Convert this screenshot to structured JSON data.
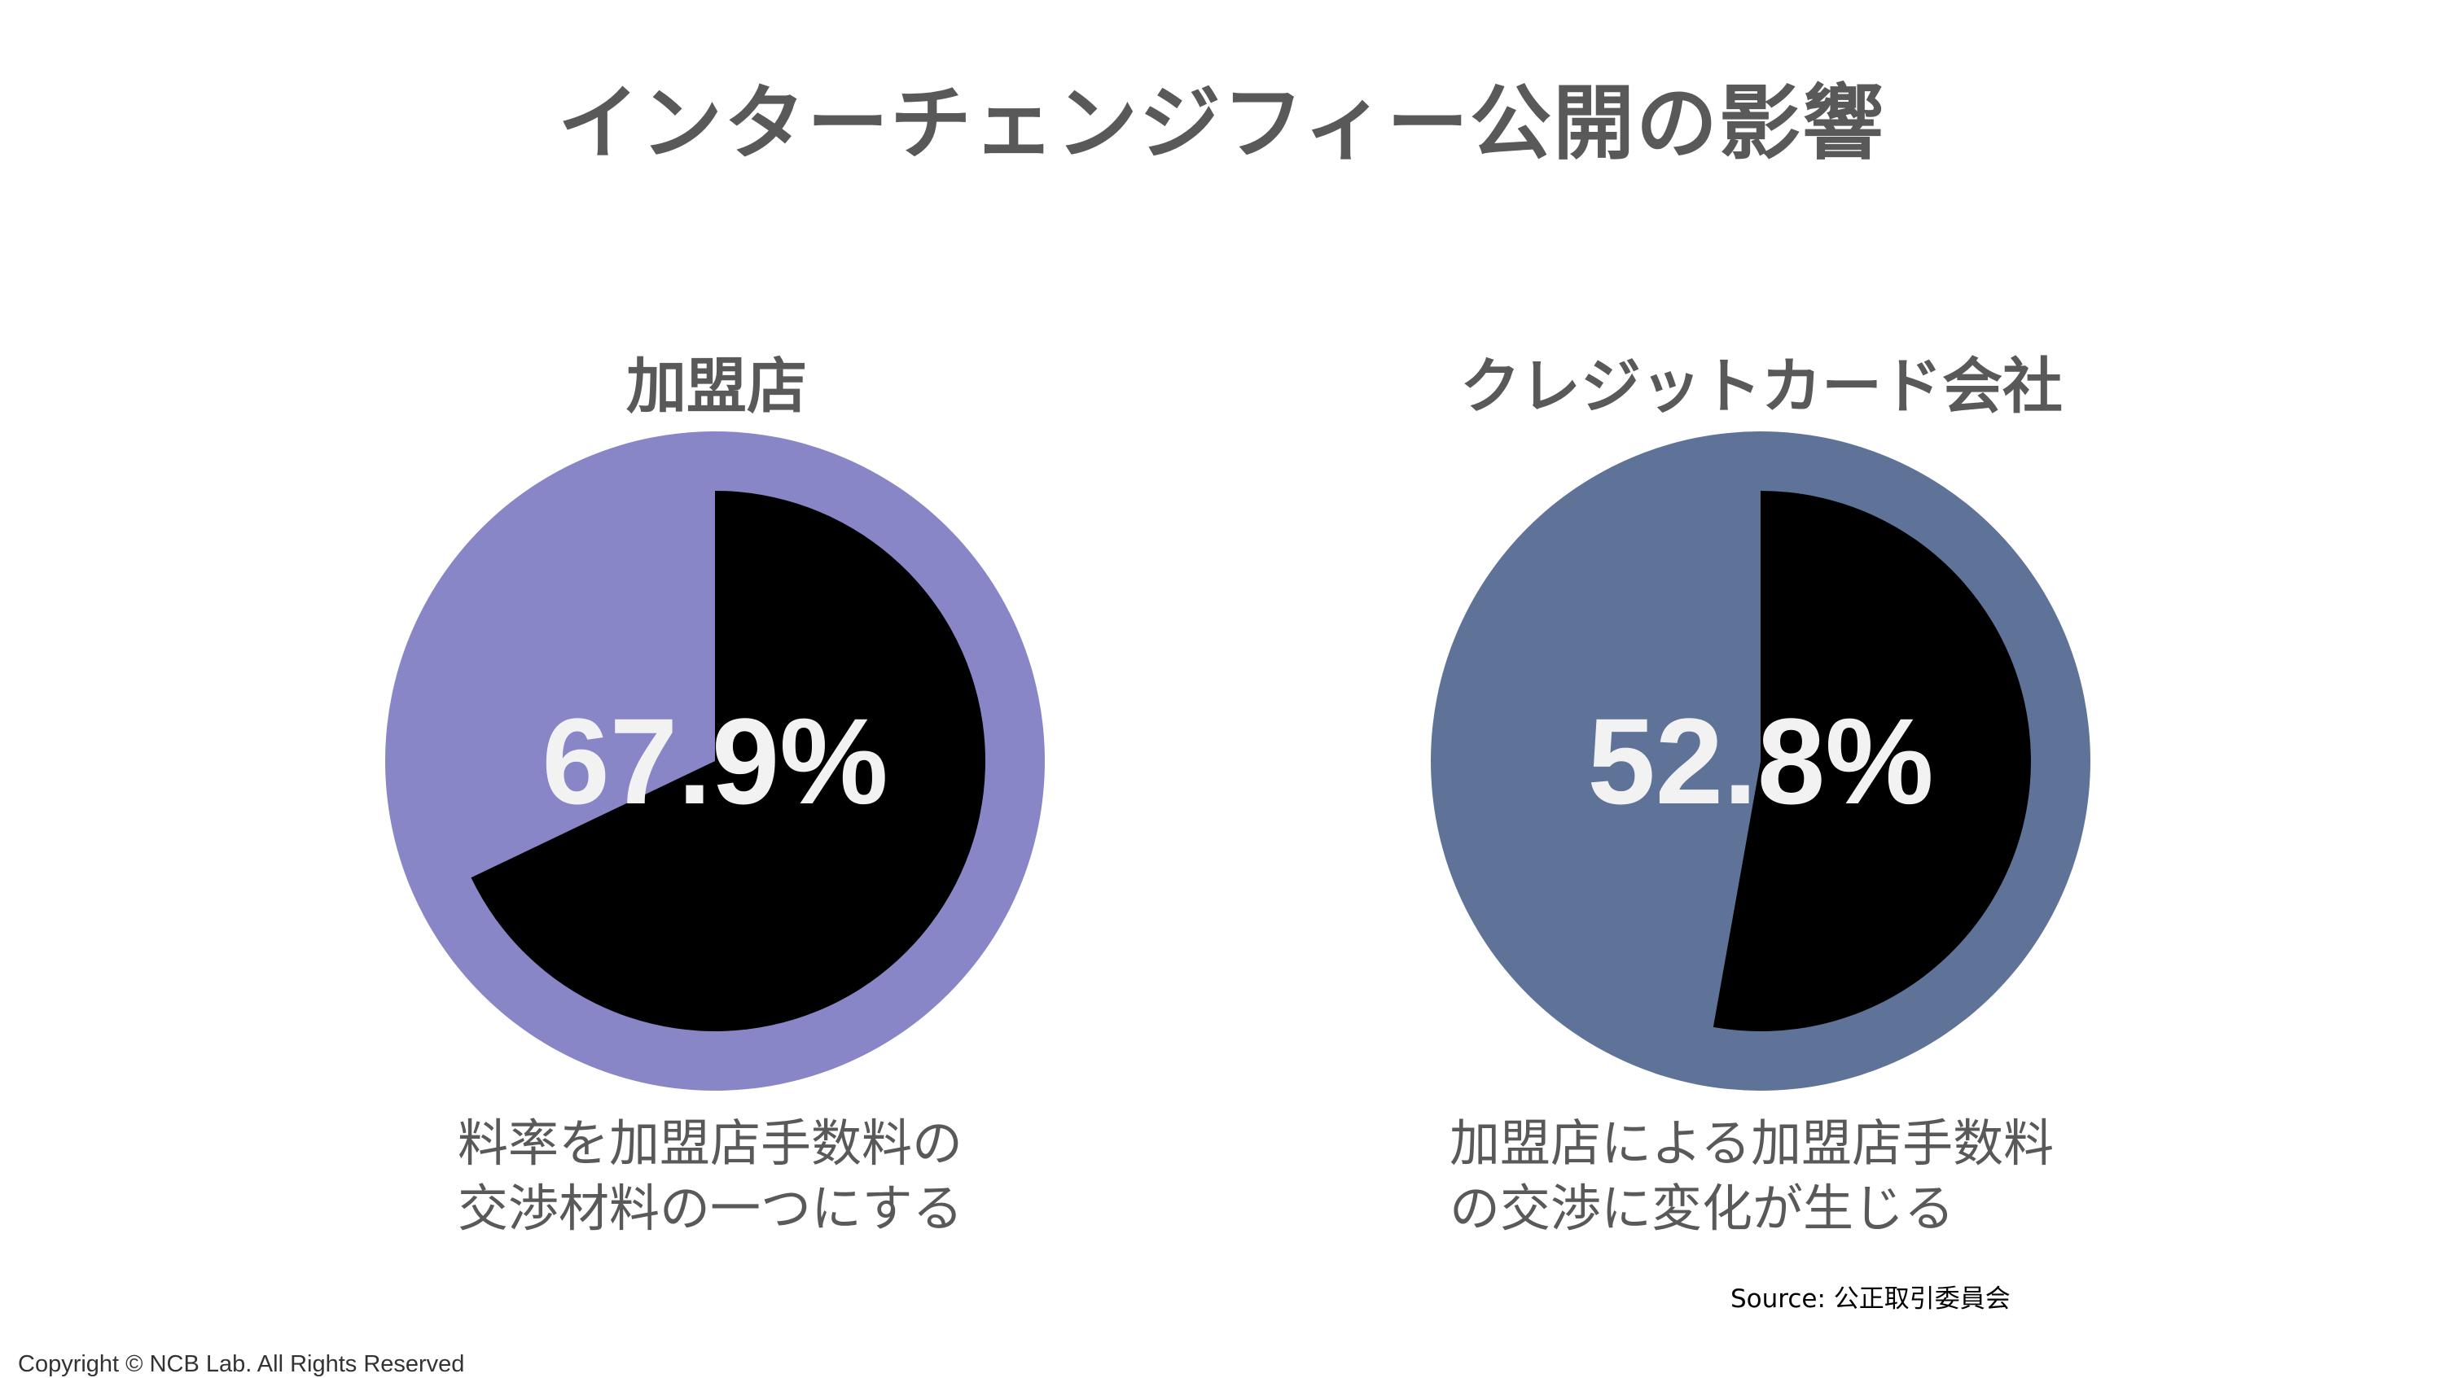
{
  "title": "インターチェンジフィー公開の影響",
  "chart_data": [
    {
      "type": "pie",
      "title": "加盟店",
      "value_percent": 67.9,
      "label": "67.9%",
      "colors": {
        "highlight": "#000000",
        "rest": "#8886c6"
      },
      "caption": [
        "料率を加盟店手数料の",
        "交渉材料の一つにする"
      ]
    },
    {
      "type": "pie",
      "title": "クレジットカード会社",
      "value_percent": 52.8,
      "label": "52.8%",
      "colors": {
        "highlight": "#000000",
        "rest": "#5f7399"
      },
      "caption": [
        "加盟店による加盟店手数料",
        "の交渉に変化が生じる"
      ]
    }
  ],
  "source": "Source: 公正取引委員会",
  "copyright": "Copyright © NCB Lab. All Rights Reserved"
}
